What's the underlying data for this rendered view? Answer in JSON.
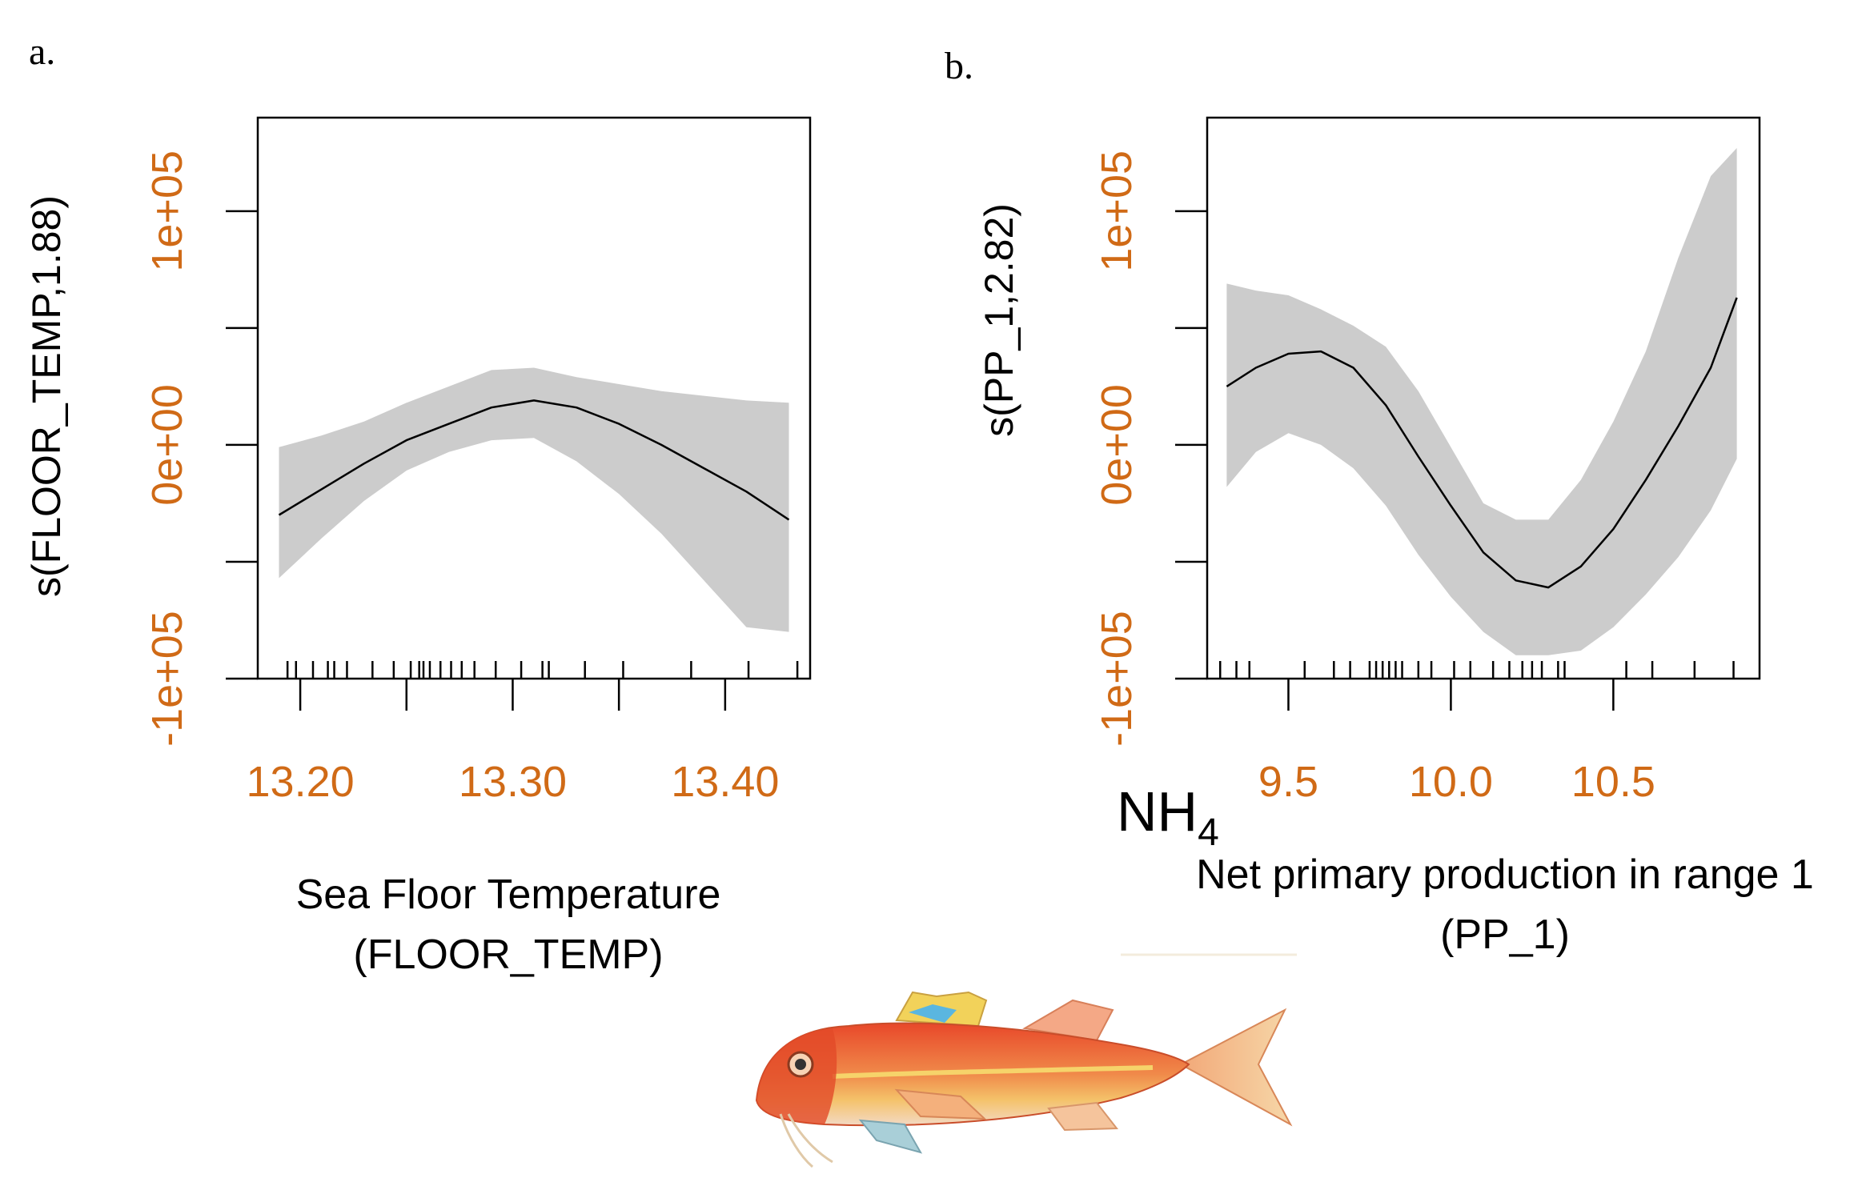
{
  "chart_data": [
    {
      "type": "line",
      "panel_label": "a.",
      "ylabel": "s(FLOOR_TEMP,1.88)",
      "xlabel_line1": "Sea Floor Temperature",
      "xlabel_line2": "(FLOOR_TEMP)",
      "xlim": [
        13.18,
        13.44
      ],
      "ylim": [
        -100000,
        140000
      ],
      "x_ticks": [
        13.2,
        13.25,
        13.3,
        13.35,
        13.4
      ],
      "x_tick_labels": [
        {
          "value": 13.2,
          "label": "13.20"
        },
        {
          "value": 13.3,
          "label": "13.30"
        },
        {
          "value": 13.4,
          "label": "13.40"
        }
      ],
      "y_ticks": [
        -100000,
        -50000,
        0,
        50000,
        100000
      ],
      "y_tick_labels": [
        {
          "value": -100000,
          "label": "-1e+05"
        },
        {
          "value": 0,
          "label": "0e+00"
        },
        {
          "value": 100000,
          "label": "1e+05"
        }
      ],
      "x": [
        13.19,
        13.21,
        13.23,
        13.25,
        13.27,
        13.29,
        13.31,
        13.33,
        13.35,
        13.37,
        13.39,
        13.41,
        13.43
      ],
      "fit": [
        -30000,
        -19000,
        -8000,
        2000,
        9000,
        16000,
        19000,
        16000,
        9000,
        0,
        -10000,
        -20000,
        -32000
      ],
      "lower": [
        -57000,
        -40000,
        -24000,
        -11000,
        -3000,
        2000,
        3000,
        -7000,
        -21000,
        -38000,
        -58000,
        -78000,
        -80000
      ],
      "upper": [
        -1000,
        4000,
        10000,
        18000,
        25000,
        32000,
        33000,
        29000,
        26000,
        23000,
        21000,
        19000,
        18000
      ],
      "rug": [
        13.194,
        13.198,
        13.206,
        13.213,
        13.216,
        13.222,
        13.234,
        13.244,
        13.252,
        13.256,
        13.258,
        13.261,
        13.266,
        13.271,
        13.276,
        13.282,
        13.292,
        13.304,
        13.314,
        13.317,
        13.334,
        13.352,
        13.384,
        13.411,
        13.434
      ]
    },
    {
      "type": "line",
      "panel_label": "b.",
      "ylabel": "s(PP_1,2.82)",
      "xlabel_line1": "Net primary production in range 1",
      "xlabel_line2": "(PP_1)",
      "extra_label": "NH",
      "extra_label_sub": "4",
      "xlim": [
        9.25,
        10.95
      ],
      "ylim": [
        -100000,
        140000
      ],
      "x_ticks": [
        9.5,
        10.0,
        10.5
      ],
      "x_tick_labels": [
        {
          "value": 9.5,
          "label": "9.5"
        },
        {
          "value": 10.0,
          "label": "10.0"
        },
        {
          "value": 10.5,
          "label": "10.5"
        }
      ],
      "y_ticks": [
        -100000,
        -50000,
        0,
        50000,
        100000
      ],
      "y_tick_labels": [
        {
          "value": -100000,
          "label": "-1e+05"
        },
        {
          "value": 0,
          "label": "0e+00"
        },
        {
          "value": 100000,
          "label": "1e+05"
        }
      ],
      "x": [
        9.31,
        9.4,
        9.5,
        9.6,
        9.7,
        9.8,
        9.9,
        10.0,
        10.1,
        10.2,
        10.3,
        10.4,
        10.5,
        10.6,
        10.7,
        10.8,
        10.88
      ],
      "fit": [
        25000,
        33000,
        39000,
        40000,
        33000,
        17000,
        -5000,
        -26000,
        -46000,
        -58000,
        -61000,
        -52000,
        -36000,
        -15000,
        8000,
        33000,
        63000
      ],
      "lower": [
        -18000,
        -3000,
        5000,
        0,
        -10000,
        -26000,
        -47000,
        -65000,
        -80000,
        -90000,
        -90000,
        -88000,
        -78000,
        -64000,
        -48000,
        -28000,
        -6000
      ],
      "upper": [
        69000,
        66000,
        64000,
        58000,
        51000,
        42000,
        23000,
        -1000,
        -25000,
        -32000,
        -32000,
        -15000,
        10000,
        40000,
        80000,
        115000,
        127000
      ],
      "rug": [
        9.29,
        9.34,
        9.38,
        9.55,
        9.64,
        9.69,
        9.75,
        9.77,
        9.79,
        9.81,
        9.83,
        9.85,
        9.9,
        9.94,
        10.01,
        10.06,
        10.13,
        10.18,
        10.22,
        10.25,
        10.28,
        10.33,
        10.35,
        10.54,
        10.62,
        10.75,
        10.87
      ]
    }
  ],
  "colors": {
    "band": "#cccccc",
    "line": "#000000",
    "frame": "#000000",
    "tick_label": "#d06a16",
    "text": "#000000"
  },
  "fish_icon": "red-mullet-fish-illustration"
}
